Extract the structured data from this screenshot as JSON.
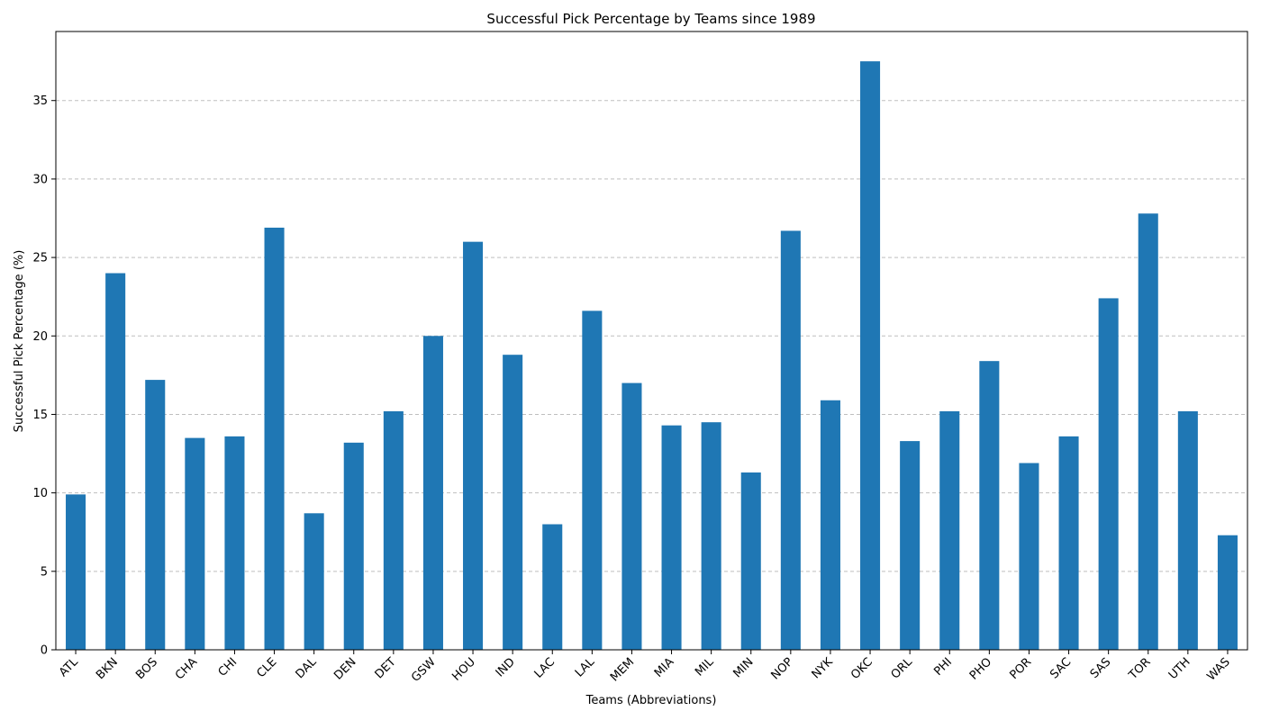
{
  "chart_data": {
    "type": "bar",
    "title": "Successful Pick Percentage by Teams since 1989",
    "xlabel": "Teams (Abbreviations)",
    "ylabel": "Successful Pick Percentage (%)",
    "categories": [
      "ATL",
      "BKN",
      "BOS",
      "CHA",
      "CHI",
      "CLE",
      "DAL",
      "DEN",
      "DET",
      "GSW",
      "HOU",
      "IND",
      "LAC",
      "LAL",
      "MEM",
      "MIA",
      "MIL",
      "MIN",
      "NOP",
      "NYK",
      "OKC",
      "ORL",
      "PHI",
      "PHO",
      "POR",
      "SAC",
      "SAS",
      "TOR",
      "UTH",
      "WAS"
    ],
    "values": [
      9.9,
      24.0,
      17.2,
      13.5,
      13.6,
      26.9,
      8.7,
      13.2,
      15.2,
      20.0,
      26.0,
      18.8,
      8.0,
      21.6,
      17.0,
      14.3,
      14.5,
      11.3,
      26.7,
      15.9,
      37.5,
      13.3,
      15.2,
      18.4,
      11.9,
      13.6,
      22.4,
      27.8,
      15.2,
      7.3
    ],
    "yticks": [
      "0",
      "5",
      "10",
      "15",
      "20",
      "25",
      "30",
      "35"
    ],
    "ylim": [
      0,
      39.4
    ],
    "grid": "y-dashed",
    "colors": {
      "bar": "#1f77b4",
      "grid": "#bfbfbf",
      "axis": "#000000"
    }
  }
}
